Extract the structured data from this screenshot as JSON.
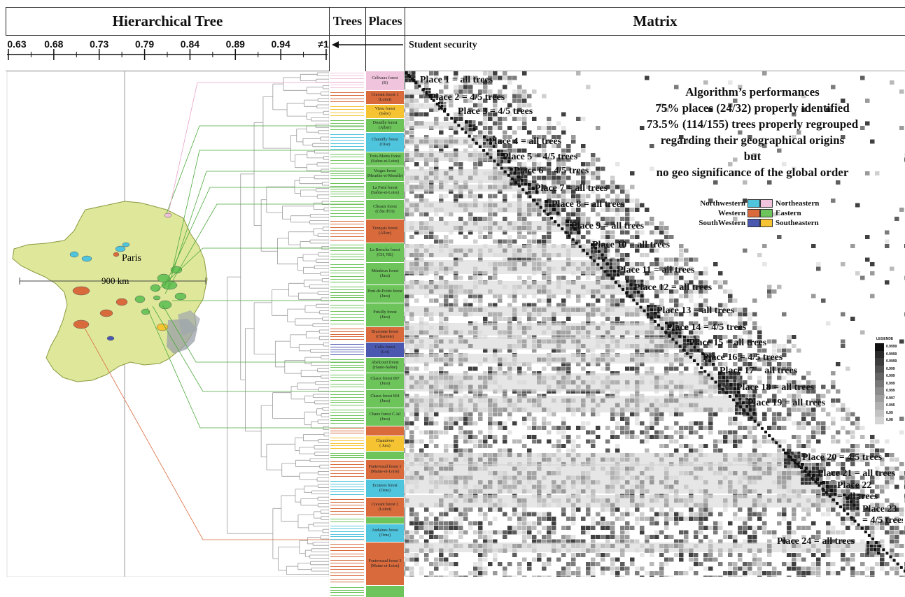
{
  "headers": {
    "tree": "Hierarchical Tree",
    "trees": "Trees",
    "places": "Places",
    "matrix": "Matrix"
  },
  "scale_ticks": [
    "0.63",
    "0.68",
    "0.73",
    "0.79",
    "0.84",
    "0.89",
    "0.94",
    "≠1"
  ],
  "student_security": "Student security",
  "map": {
    "paris_label": "Paris",
    "distance_label": "900 km"
  },
  "colors": {
    "northwestern": "#4fc4dd",
    "northeastern": "#f0c4dc",
    "western": "#d86a3c",
    "eastern": "#6cc45a",
    "southwestern": "#4a58b0",
    "southeastern": "#f6c432",
    "map_land": "#dfe89a"
  },
  "places_column": [
    {
      "name": "Gélivaux forest",
      "sub": "(B)",
      "region": "northeastern",
      "h": 28
    },
    {
      "name": "Cravant forest 1",
      "sub": "(Loiret)",
      "region": "western",
      "h": 20
    },
    {
      "name": "Vireu forest",
      "sub": "(Isère)",
      "region": "southeastern",
      "h": 20
    },
    {
      "name": "Dreuille forest",
      "sub": "(Allier)",
      "region": "eastern",
      "h": 20
    },
    {
      "name": "Chantilly forest",
      "sub": "(Oise)",
      "region": "northwestern",
      "h": 28
    },
    {
      "name": "Trois-Monts forest",
      "sub": "(Saône-et-Loire)",
      "region": "eastern",
      "h": 20
    },
    {
      "name": "Vosges forest",
      "sub": "(Meurthe-et-Moselle)",
      "region": "eastern",
      "h": 22
    },
    {
      "name": "La Ferté forest",
      "sub": "(Saône-et-Loire)",
      "region": "eastern",
      "h": 26
    },
    {
      "name": "Cîteaux forest",
      "sub": "(Côte d'Or)",
      "region": "eastern",
      "h": 28
    },
    {
      "name": "Tronçais forest",
      "sub": "(Allier)",
      "region": "western",
      "h": 34
    },
    {
      "name": "La Béroche forest",
      "sub": "(CH, NE)",
      "region": "eastern",
      "h": 28
    },
    {
      "name": "Ménétrux forest",
      "sub": "(Jura)",
      "region": "eastern",
      "h": 32
    },
    {
      "name": "Pont-de-Poitte forest",
      "sub": "(Jura)",
      "region": "eastern",
      "h": 26
    },
    {
      "name": "Présilly forest",
      "sub": "(Jura)",
      "region": "eastern",
      "h": 34
    },
    {
      "name": "Braconne forest",
      "sub": "(Charente)",
      "region": "western",
      "h": 22
    },
    {
      "name": "Calès forest",
      "sub": "(Lot)",
      "region": "southwestern",
      "h": 22
    },
    {
      "name": "Abelcourt forest",
      "sub": "(Haute-Saône)",
      "region": "eastern",
      "h": 22
    },
    {
      "name": "Chaux forest 097",
      "sub": "(Jura)",
      "region": "eastern",
      "h": 24
    },
    {
      "name": "Chaux forest 664",
      "sub": "(Jura)",
      "region": "eastern",
      "h": 26
    },
    {
      "name": "Chaux forest C.Jal",
      "sub": "(Jura)",
      "region": "eastern",
      "h": 26
    },
    {
      "name": "",
      "sub": "",
      "region": "western",
      "h": 14
    },
    {
      "name": "Chamièvre",
      "sub": "( Jura)",
      "region": "southeastern",
      "h": 22
    },
    {
      "name": "",
      "sub": "",
      "region": "eastern",
      "h": 12
    },
    {
      "name": "Fontevraud forest 1",
      "sub": "(Maine-et-Loire)",
      "region": "western",
      "h": 28
    },
    {
      "name": "Ecouves forest",
      "sub": "(Orne)",
      "region": "northwestern",
      "h": 26
    },
    {
      "name": "Cravant forest 2",
      "sub": "(Loiret)",
      "region": "western",
      "h": 28
    },
    {
      "name": "",
      "sub": "",
      "region": "eastern",
      "h": 10
    },
    {
      "name": "Andaines forest",
      "sub": "(Orne)",
      "region": "northwestern",
      "h": 26
    },
    {
      "name": "Fontevraud forest 3",
      "sub": "(Maine-et-Loire)",
      "region": "western",
      "h": 62
    },
    {
      "name": "",
      "sub": "",
      "region": "eastern",
      "h": 17
    }
  ],
  "matrix_labels": [
    {
      "text": "Place 1 = all trees"
    },
    {
      "text": "Place 2 = 4/5 trees"
    },
    {
      "text": "Place 3 = 4/5 trees"
    },
    {
      "text": "Place 4 = all trees"
    },
    {
      "text": "Place 5 = 4/5 trees"
    },
    {
      "text": "Place 6 = 4/5 trees"
    },
    {
      "text": "Place 7 = all trees"
    },
    {
      "text": "Place 8 = all trees"
    },
    {
      "text": "Place 9 = all trees"
    },
    {
      "text": "Place 10 = all trees"
    },
    {
      "text": "Place 11 = all trees"
    },
    {
      "text": "Place 12 = all trees"
    },
    {
      "text": "Place 13 = all trees"
    },
    {
      "text": "Place 14 = 4/5 trees"
    },
    {
      "text": "Place 15 = all trees"
    },
    {
      "text": "Place 16 = 4/5 trees"
    },
    {
      "text": "Place 17 = all trees"
    },
    {
      "text": "Place 18 = all trees"
    },
    {
      "text": "Place 19 = all trees"
    },
    {
      "text": "Place 20 = 4/5 trees"
    },
    {
      "text": "Place 21 = all trees"
    },
    {
      "text": "Place 22",
      "text2": "= all trees"
    },
    {
      "text": "Place 23",
      "text2": "= 4/5 trees"
    },
    {
      "text": "Place 24 = all trees"
    }
  ],
  "performance": {
    "title": "Algorithm’s performances",
    "line1": "75% places (24/32) properly identified",
    "line2": "73.5% (114/155) trees properly regrouped",
    "line3": "regarding their geographical origins",
    "line4": "but",
    "line5": "no geo significance of the global order"
  },
  "region_legend": {
    "northwestern": "Northwestern",
    "northeastern": "Northeastern",
    "western": "Western",
    "eastern": "Eastern",
    "southwestern": "SouthWestern",
    "southeastern": "Southeastern"
  },
  "scale_legend": {
    "title": "LEGENDE",
    "values": [
      "0.9999",
      "0.9999",
      "0.9999",
      "0.999",
      "0.999",
      "0.999",
      "0.999",
      "0.997",
      "0.995",
      "0.99",
      "0.98"
    ]
  }
}
